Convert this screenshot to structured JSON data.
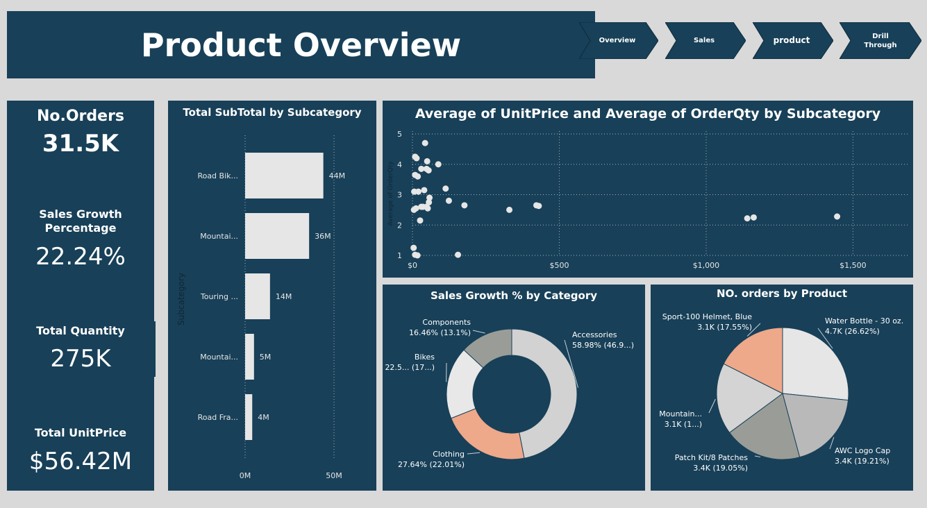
{
  "header": {
    "title": "Product Overview"
  },
  "nav": [
    {
      "label": "Overview"
    },
    {
      "label": "Sales"
    },
    {
      "label": "product"
    },
    {
      "label": "Drill Through"
    }
  ],
  "kpis": {
    "orders": {
      "title": "No.Orders",
      "value": "31.5K"
    },
    "growth": {
      "title": "Sales Growth Percentage",
      "value": "22.24%"
    },
    "quantity": {
      "title": "Total Quantity",
      "value": "275K"
    },
    "unitprice": {
      "title": "Total UnitPrice",
      "value": "$56.42M"
    }
  },
  "colors": {
    "background": "#d9d9d9",
    "panel": "#184058",
    "bar": "#e6e6e6",
    "accent_salmon": "#eea88a",
    "grey_dark": "#9a9d97",
    "grey_mid": "#b9b9b9",
    "grey_light": "#d4d4d4",
    "grey_lightest": "#e8e8e8"
  },
  "chart_data": [
    {
      "type": "bar",
      "orientation": "horizontal",
      "title": "Total SubTotal by Subcategory",
      "ylabel": "Subcategory",
      "categories": [
        "Road Bik...",
        "Mountai...",
        "Touring ...",
        "Mountai...",
        "Road Fra..."
      ],
      "values": [
        44,
        36,
        14,
        5,
        4
      ],
      "value_labels": [
        "44M",
        "36M",
        "14M",
        "5M",
        "4M"
      ],
      "xticks": [
        "0M",
        "50M"
      ],
      "xlim": [
        0,
        50
      ]
    },
    {
      "type": "scatter",
      "title": "Average of UnitPrice and Average of OrderQty by Subcategory",
      "ylabel": "Average of OrderQty",
      "xticks": [
        "$0",
        "$500",
        "$1,000",
        "$1,500"
      ],
      "xtick_values": [
        0,
        500,
        1000,
        1500
      ],
      "yticks": [
        "1",
        "2",
        "3",
        "4",
        "5"
      ],
      "xlim": [
        0,
        1700
      ],
      "ylim": [
        1,
        5
      ],
      "points": [
        [
          4,
          1.25
        ],
        [
          9,
          1.02
        ],
        [
          17,
          1.0
        ],
        [
          155,
          1.02
        ],
        [
          5,
          2.5
        ],
        [
          12,
          2.55
        ],
        [
          20,
          3.1
        ],
        [
          6,
          3.1
        ],
        [
          9,
          3.65
        ],
        [
          18,
          3.6
        ],
        [
          26,
          2.15
        ],
        [
          30,
          2.6
        ],
        [
          36,
          2.6
        ],
        [
          48,
          2.6
        ],
        [
          52,
          2.55
        ],
        [
          40,
          3.15
        ],
        [
          56,
          2.75
        ],
        [
          58,
          2.9
        ],
        [
          55,
          3.8
        ],
        [
          48,
          3.85
        ],
        [
          50,
          4.1
        ],
        [
          30,
          3.85
        ],
        [
          43,
          4.7
        ],
        [
          9,
          4.25
        ],
        [
          14,
          4.2
        ],
        [
          88,
          4.0
        ],
        [
          113,
          3.2
        ],
        [
          124,
          2.8
        ],
        [
          177,
          2.65
        ],
        [
          330,
          2.5
        ],
        [
          422,
          2.65
        ],
        [
          430,
          2.63
        ],
        [
          1140,
          2.22
        ],
        [
          1162,
          2.25
        ],
        [
          1446,
          2.28
        ]
      ]
    },
    {
      "type": "pie",
      "donut": true,
      "title": "Sales Growth % by Category",
      "slices": [
        {
          "name": "Accessories",
          "label": "Accessories",
          "value_label": "58.98% (46.9...)",
          "value": 46.9,
          "color": "#d2d2d2"
        },
        {
          "name": "Clothing",
          "label": "Clothing",
          "value_label": "27.64% (22.01%)",
          "value": 22.01,
          "color": "#eea88a"
        },
        {
          "name": "Bikes",
          "label": "Bikes",
          "value_label": "22.5... (17...)",
          "value": 17.9,
          "color": "#e8e8e8"
        },
        {
          "name": "Components",
          "label": "Components",
          "value_label": "16.46% (13.1%)",
          "value": 13.1,
          "color": "#9a9d97"
        }
      ]
    },
    {
      "type": "pie",
      "title": "NO. orders by Product",
      "slices": [
        {
          "name": "Water Bottle - 30 oz.",
          "label": "Water Bottle - 30 oz.",
          "value_label": "4.7K (26.62%)",
          "value": 26.62,
          "color": "#e6e6e6"
        },
        {
          "name": "AWC Logo Cap",
          "label": "AWC Logo Cap",
          "value_label": "3.4K (19.21%)",
          "value": 19.21,
          "color": "#b9b9b9"
        },
        {
          "name": "Patch Kit/8 Patches",
          "label": "Patch Kit/8 Patches",
          "value_label": "3.4K (19.05%)",
          "value": 19.05,
          "color": "#9a9d97"
        },
        {
          "name": "Mountain...",
          "label": "Mountain...",
          "value_label": "3.1K (1...)",
          "value": 17.57,
          "color": "#d4d4d4"
        },
        {
          "name": "Sport-100 Helmet, Blue",
          "label": "Sport-100 Helmet, Blue",
          "value_label": "3.1K (17.55%)",
          "value": 17.55,
          "color": "#eea88a"
        }
      ]
    }
  ]
}
